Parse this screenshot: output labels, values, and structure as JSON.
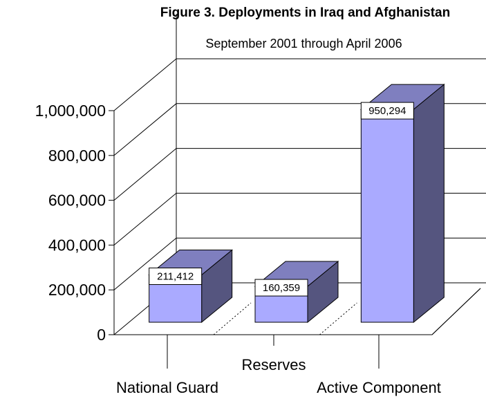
{
  "chart_data": {
    "type": "bar",
    "title": "Figure 3. Deployments in Iraq and Afghanistan",
    "subtitle": "September 2001 through April 2006",
    "categories": [
      "National Guard",
      "Reserves",
      "Active Component"
    ],
    "values": [
      211412,
      160359,
      950294
    ],
    "data_labels": [
      "211,412",
      "160,359",
      "950,294"
    ],
    "y_ticks": [
      0,
      200000,
      400000,
      600000,
      800000,
      1000000
    ],
    "y_tick_labels": [
      "0",
      "200,000",
      "400,000",
      "600,000",
      "800,000",
      "1,000,000"
    ],
    "ylim": [
      0,
      1000000
    ],
    "xlabel": "",
    "ylabel": "",
    "grid": true,
    "colors": {
      "front": "#aaaaff",
      "top": "#7f7fbf",
      "side": "#55557f"
    }
  }
}
